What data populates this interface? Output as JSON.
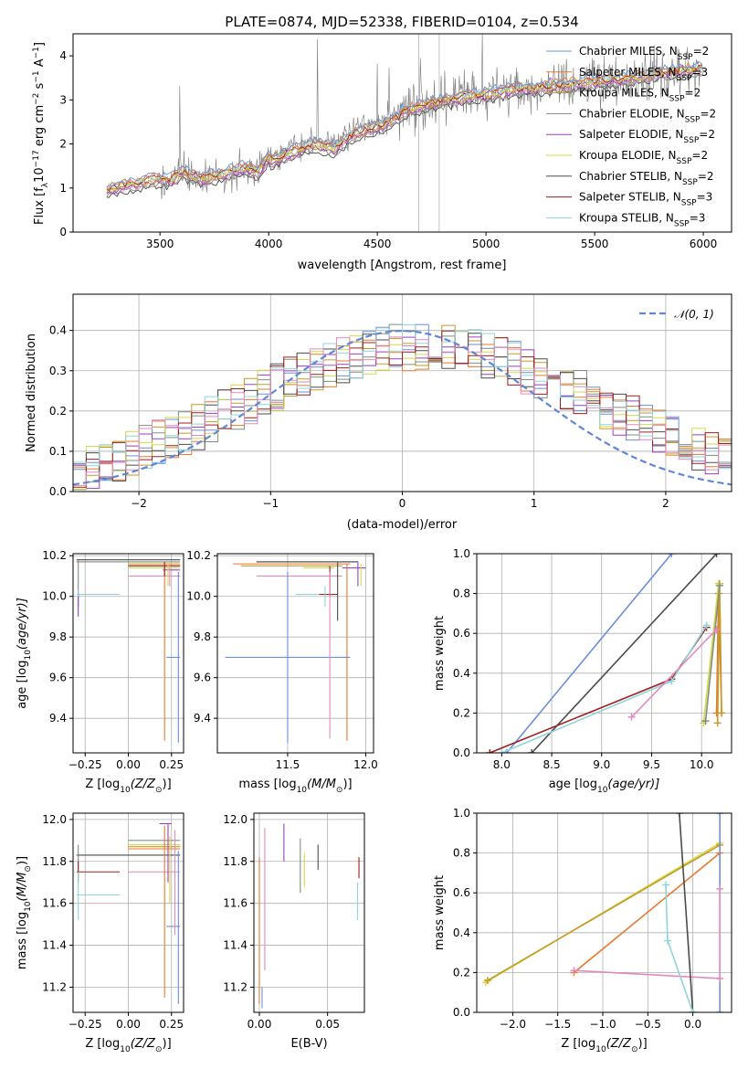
{
  "colors": [
    "#6a8fd8",
    "#e8782c",
    "#c49a2a",
    "#7f8f7f",
    "#9a3fc4",
    "#d6d84a",
    "#4b4b4b",
    "#a11d1d",
    "#8fd4dc",
    "#e28abf"
  ],
  "chart_data": [
    {
      "id": "spectrum",
      "type": "line",
      "title": "PLATE=0874, MJD=52338, FIBERID=0104, z=0.534",
      "xlabel": "wavelength [Angstrom, rest frame]",
      "ylabel_main": "Flux [f",
      "ylabel_sub": "λ",
      "ylabel_rest": "10",
      "ylabel_exp1": "−17",
      "ylabel_mid": " erg cm",
      "ylabel_exp2": "−2",
      "ylabel_mid2": " s",
      "ylabel_exp3": "−1",
      "ylabel_end": " A",
      "ylabel_exp4": "−1",
      "ylabel_close": "]",
      "xlim": [
        3100,
        6130
      ],
      "ylim": [
        0,
        4.5
      ],
      "xticks": [
        3500,
        4000,
        4500,
        5000,
        5500,
        6000
      ],
      "yticks": [
        0,
        1,
        2,
        3,
        4
      ],
      "legend_position": "top-right",
      "legend": [
        {
          "base": "Chabrier MILES, N",
          "sub": "SSP",
          "tail": "=2"
        },
        {
          "base": "Salpeter MILES, N",
          "sub": "SSP",
          "tail": "=3"
        },
        {
          "base": "Kroupa MILES, N",
          "sub": "SSP",
          "tail": "=2"
        },
        {
          "base": "Chabrier ELODIE, N",
          "sub": "SSP",
          "tail": "=2"
        },
        {
          "base": "Salpeter ELODIE, N",
          "sub": "SSP",
          "tail": "=2"
        },
        {
          "base": "Kroupa ELODIE, N",
          "sub": "SSP",
          "tail": "=2"
        },
        {
          "base": "Chabrier STELIB, N",
          "sub": "SSP",
          "tail": "=2"
        },
        {
          "base": "Salpeter STELIB, N",
          "sub": "SSP",
          "tail": "=3"
        },
        {
          "base": "Kroupa STELIB, N",
          "sub": "SSP",
          "tail": "=3"
        }
      ],
      "continuum": [
        [
          3200,
          0.85
        ],
        [
          3300,
          1.0
        ],
        [
          3400,
          1.1
        ],
        [
          3500,
          1.2
        ],
        [
          3550,
          1.15
        ],
        [
          3600,
          1.35
        ],
        [
          3650,
          1.25
        ],
        [
          3700,
          1.2
        ],
        [
          3800,
          1.3
        ],
        [
          3900,
          1.45
        ],
        [
          3950,
          1.35
        ],
        [
          4000,
          1.7
        ],
        [
          4100,
          1.9
        ],
        [
          4200,
          2.1
        ],
        [
          4300,
          2.0
        ],
        [
          4400,
          2.35
        ],
        [
          4500,
          2.5
        ],
        [
          4600,
          2.7
        ],
        [
          4700,
          2.85
        ],
        [
          4800,
          2.95
        ],
        [
          4900,
          3.05
        ],
        [
          5000,
          3.1
        ],
        [
          5100,
          3.2
        ],
        [
          5200,
          3.25
        ],
        [
          5300,
          3.3
        ],
        [
          5400,
          3.35
        ],
        [
          5500,
          3.4
        ],
        [
          5600,
          3.45
        ],
        [
          5700,
          3.5
        ],
        [
          5800,
          3.6
        ],
        [
          5900,
          3.65
        ],
        [
          6000,
          3.7
        ]
      ]
    },
    {
      "id": "residuals",
      "type": "step-histogram",
      "xlabel": "(data-model)/error",
      "ylabel": "Normed distribution",
      "xlim": [
        -2.5,
        2.5
      ],
      "ylim": [
        0,
        0.49
      ],
      "xticks": [
        -2,
        -1,
        0,
        1,
        2
      ],
      "yticks": [
        0.0,
        0.1,
        0.2,
        0.3,
        0.4
      ],
      "legend_label": "𝒩(0, 1)",
      "legend_position": "top-right"
    },
    {
      "id": "age-vs-Z",
      "type": "errorbar",
      "xlabel": "Z [log",
      "xlabel_sub": "10",
      "xlabel_tail": "(Z/Z",
      "xlabel_sub2": "⊙",
      "xlabel_end": ")]",
      "ylabel": "age  [log",
      "ylabel_sub": "10",
      "ylabel_tail": "(age/yr)]",
      "xlim": [
        -0.32,
        0.32
      ],
      "ylim": [
        9.23,
        10.21
      ],
      "xticks": [
        -0.25,
        0.0,
        0.25
      ],
      "xticklabels": [
        "−0.25",
        "0.00",
        "0.25"
      ],
      "yticks": [
        9.4,
        9.6,
        9.8,
        10.0,
        10.2
      ],
      "xerrors": [
        [
          0.22,
          0.3,
          9.7,
          0
        ],
        [
          0.0,
          0.3,
          10.15,
          1
        ],
        [
          0.0,
          0.3,
          10.16,
          2
        ],
        [
          -0.3,
          0.3,
          10.17,
          3
        ],
        [
          0.2,
          0.3,
          10.13,
          4
        ],
        [
          0.0,
          0.3,
          10.14,
          5
        ],
        [
          -0.3,
          0.3,
          10.18,
          6
        ],
        [
          0.0,
          0.3,
          10.15,
          7
        ],
        [
          -0.3,
          -0.05,
          10.01,
          8
        ],
        [
          0.0,
          0.3,
          10.1,
          9
        ]
      ],
      "yerrors": [
        [
          0.29,
          9.28,
          10.12,
          0
        ],
        [
          0.21,
          9.29,
          10.15,
          1
        ],
        [
          -0.29,
          9.95,
          10.18,
          3
        ],
        [
          0.23,
          10.05,
          10.17,
          5
        ],
        [
          -0.29,
          9.9,
          10.02,
          4
        ],
        [
          0.21,
          10.1,
          10.17,
          7
        ],
        [
          -0.29,
          10.0,
          10.03,
          8
        ],
        [
          0.24,
          10.05,
          10.16,
          9
        ]
      ]
    },
    {
      "id": "age-vs-mass",
      "type": "errorbar",
      "xlabel": "mass [log",
      "xlabel_sub": "10",
      "xlabel_tail": "(M/M",
      "xlabel_sub2": "⊙",
      "xlabel_end": ")]",
      "xlim": [
        11.05,
        12.05
      ],
      "ylim": [
        9.23,
        10.21
      ],
      "xticks": [
        11.5,
        12.0
      ],
      "xticklabels": [
        "11.5",
        "12.0"
      ],
      "yticks": [
        9.4,
        9.6,
        9.8,
        10.0,
        10.2
      ],
      "xerrors": [
        [
          11.1,
          11.9,
          9.7,
          0
        ],
        [
          11.15,
          11.9,
          10.16,
          1
        ],
        [
          11.2,
          11.85,
          10.15,
          2
        ],
        [
          11.3,
          11.95,
          10.17,
          3
        ],
        [
          11.85,
          12.0,
          10.14,
          4
        ],
        [
          11.6,
          11.8,
          10.14,
          5
        ],
        [
          11.3,
          11.95,
          10.17,
          6
        ],
        [
          11.7,
          11.82,
          10.01,
          7
        ],
        [
          11.55,
          11.7,
          10.01,
          8
        ],
        [
          11.3,
          11.85,
          10.1,
          9
        ]
      ],
      "yerrors": [
        [
          11.5,
          9.28,
          10.12,
          0
        ],
        [
          11.88,
          9.29,
          10.16,
          1
        ],
        [
          11.82,
          9.88,
          10.17,
          6
        ],
        [
          11.77,
          10.0,
          10.15,
          7
        ],
        [
          11.95,
          10.05,
          10.17,
          4
        ],
        [
          11.74,
          9.95,
          10.05,
          8
        ],
        [
          11.77,
          9.3,
          10.12,
          9
        ],
        [
          11.97,
          10.05,
          10.16,
          5
        ]
      ]
    },
    {
      "id": "mw-vs-age",
      "type": "line",
      "xlabel": "age  [log",
      "xlabel_sub": "10",
      "xlabel_tail": "(age/yr)]",
      "ylabel": "mass weight",
      "xlim": [
        7.75,
        10.3
      ],
      "ylim": [
        0,
        1.0
      ],
      "xticks": [
        8.0,
        8.5,
        9.0,
        9.5,
        10.0
      ],
      "xticklabels": [
        "8.0",
        "8.5",
        "9.0",
        "9.5",
        "10.0"
      ],
      "yticks": [
        0.0,
        0.2,
        0.4,
        0.6,
        0.8,
        1.0
      ],
      "yticklabels": [
        "0.0",
        "0.2",
        "0.4",
        "0.6",
        "0.8",
        "1.0"
      ],
      "series": [
        {
          "c": 0,
          "x": [
            8.05,
            9.7
          ],
          "y": [
            0.0,
            1.0
          ]
        },
        {
          "c": 6,
          "x": [
            8.3,
            10.15
          ],
          "y": [
            0.0,
            1.0
          ]
        },
        {
          "c": 1,
          "x": [
            10.15,
            10.17,
            10.2
          ],
          "y": [
            0.2,
            0.8,
            0.2
          ]
        },
        {
          "c": 2,
          "x": [
            10.16,
            10.18,
            10.2
          ],
          "y": [
            0.15,
            0.85,
            0.2
          ]
        },
        {
          "c": 5,
          "x": [
            10.02,
            10.17
          ],
          "y": [
            0.15,
            0.85
          ]
        },
        {
          "c": 3,
          "x": [
            10.04,
            10.18
          ],
          "y": [
            0.16,
            0.84
          ]
        },
        {
          "c": 7,
          "x": [
            7.88,
            9.7,
            10.05
          ],
          "y": [
            0.0,
            0.37,
            0.63
          ]
        },
        {
          "c": 8,
          "x": [
            8.0,
            9.7,
            10.05
          ],
          "y": [
            0.0,
            0.36,
            0.64
          ]
        },
        {
          "c": 9,
          "x": [
            9.3,
            10.15
          ],
          "y": [
            0.18,
            0.62
          ]
        }
      ]
    },
    {
      "id": "mass-vs-Z",
      "type": "errorbar",
      "xlabel": "Z [log",
      "xlabel_sub": "10",
      "xlabel_tail": "(Z/Z",
      "xlabel_sub2": "⊙",
      "xlabel_end": ")]",
      "ylabel": "mass [log",
      "ylabel_sub": "10",
      "ylabel_tail": "(M/M",
      "ylabel_sub2": "⊙",
      "ylabel_end": ")]",
      "xlim": [
        -0.32,
        0.32
      ],
      "ylim": [
        11.08,
        12.03
      ],
      "xticks": [
        -0.25,
        0.0,
        0.25
      ],
      "xticklabels": [
        "−0.25",
        "0.00",
        "0.25"
      ],
      "yticks": [
        11.2,
        11.4,
        11.6,
        11.8,
        12.0
      ],
      "xerrors": [
        [
          0.22,
          0.3,
          11.49,
          0
        ],
        [
          0.0,
          0.3,
          11.86,
          1
        ],
        [
          0.0,
          0.3,
          11.87,
          2
        ],
        [
          0.0,
          0.3,
          11.9,
          3
        ],
        [
          0.18,
          0.25,
          11.98,
          4
        ],
        [
          0.0,
          0.3,
          11.88,
          5
        ],
        [
          -0.3,
          0.3,
          11.83,
          6
        ],
        [
          -0.3,
          -0.05,
          11.75,
          7
        ],
        [
          -0.3,
          -0.05,
          11.64,
          8
        ],
        [
          0.0,
          0.3,
          11.75,
          9
        ]
      ],
      "yerrors": [
        [
          0.29,
          11.12,
          11.85,
          0
        ],
        [
          0.21,
          11.15,
          11.97,
          1
        ],
        [
          -0.29,
          11.75,
          11.88,
          3
        ],
        [
          -0.29,
          11.7,
          11.8,
          7
        ],
        [
          0.23,
          11.7,
          11.98,
          4
        ],
        [
          -0.29,
          11.52,
          11.75,
          8
        ],
        [
          0.24,
          11.6,
          11.92,
          5
        ],
        [
          0.27,
          11.45,
          11.95,
          9
        ]
      ]
    },
    {
      "id": "mass-vs-EBV",
      "type": "errorbar",
      "xlabel": "E(B-V)",
      "xlim": [
        -0.004,
        0.077
      ],
      "ylim": [
        11.08,
        12.03
      ],
      "xticks": [
        0.0,
        0.05
      ],
      "xticklabels": [
        "0.00",
        "0.05"
      ],
      "yticks": [
        11.2,
        11.4,
        11.6,
        11.8,
        12.0
      ],
      "yerrors": [
        [
          0.0,
          11.12,
          11.82,
          1
        ],
        [
          0.004,
          11.28,
          11.96,
          9
        ],
        [
          0.018,
          11.8,
          11.98,
          4
        ],
        [
          0.03,
          11.65,
          11.91,
          3
        ],
        [
          0.033,
          11.68,
          11.84,
          5
        ],
        [
          0.043,
          11.76,
          11.88,
          6
        ],
        [
          0.073,
          11.72,
          11.82,
          7
        ],
        [
          0.072,
          11.52,
          11.7,
          8
        ],
        [
          0.002,
          11.1,
          11.2,
          0
        ]
      ]
    },
    {
      "id": "mw-vs-Z",
      "type": "line",
      "xlabel": "Z [log",
      "xlabel_sub": "10",
      "xlabel_tail": "(Z/Z",
      "xlabel_sub2": "⊙",
      "xlabel_end": ")]",
      "ylabel": "mass weight",
      "xlim": [
        -2.4,
        0.43
      ],
      "ylim": [
        0,
        1.0
      ],
      "xticks": [
        -2.0,
        -1.5,
        -1.0,
        -0.5,
        0.0
      ],
      "xticklabels": [
        "−2.0",
        "−1.5",
        "−1.0",
        "−0.5",
        "0.0"
      ],
      "yticks": [
        0.0,
        0.2,
        0.4,
        0.6,
        0.8,
        1.0
      ],
      "yticklabels": [
        "0.0",
        "0.2",
        "0.4",
        "0.6",
        "0.8",
        "1.0"
      ],
      "series": [
        {
          "c": 5,
          "x": [
            -2.3,
            0.3
          ],
          "y": [
            0.15,
            0.85
          ]
        },
        {
          "c": 2,
          "x": [
            -2.28,
            0.3
          ],
          "y": [
            0.16,
            0.84
          ]
        },
        {
          "c": 1,
          "x": [
            -1.32,
            0.3
          ],
          "y": [
            0.2,
            0.8
          ]
        },
        {
          "c": 9,
          "x": [
            -1.32,
            0.3
          ],
          "y": [
            0.21,
            0.17
          ]
        },
        {
          "c": 6,
          "x": [
            -0.15,
            0.0
          ],
          "y": [
            1.0,
            0.0
          ]
        },
        {
          "c": 8,
          "x": [
            -0.3,
            -0.28,
            0.0
          ],
          "y": [
            0.64,
            0.36,
            0.0
          ]
        },
        {
          "c": 0,
          "x": [
            0.3,
            0.3
          ],
          "y": [
            0.0,
            1.0
          ]
        },
        {
          "c": 9,
          "x": [
            0.3,
            0.3
          ],
          "y": [
            0.62,
            0.17
          ]
        }
      ]
    }
  ]
}
